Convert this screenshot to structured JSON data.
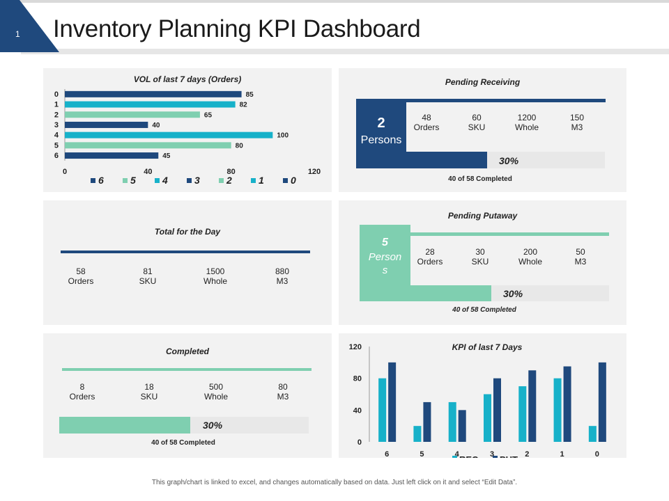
{
  "slide": {
    "number": "1",
    "title": "Inventory Planning KPI Dashboard"
  },
  "colors": {
    "navy": "#1f497d",
    "teal": "#17b1c9",
    "mint": "#7fcfb0"
  },
  "vol_chart": {
    "title": "VOL  of last 7 days (Orders)",
    "categories": [
      "0",
      "1",
      "2",
      "3",
      "4",
      "5",
      "6"
    ],
    "values": [
      85,
      82,
      65,
      40,
      100,
      80,
      45
    ],
    "x_ticks": [
      "0",
      "40",
      "80",
      "120"
    ],
    "legend": [
      "6",
      "5",
      "4",
      "3",
      "2",
      "1",
      "0"
    ]
  },
  "pending_receiving": {
    "title": "Pending  Receiving",
    "persons_value": "2",
    "persons_label": "Persons",
    "stats": [
      {
        "value": "48",
        "unit": "Orders"
      },
      {
        "value": "60",
        "unit": "SKU"
      },
      {
        "value": "1200",
        "unit": "Whole"
      },
      {
        "value": "150",
        "unit": "M3"
      }
    ],
    "pct_label": "30%",
    "completed_label": "40 of 58 Completed"
  },
  "total_day": {
    "title": "Total for the Day",
    "stats": [
      {
        "value": "58",
        "unit": "Orders"
      },
      {
        "value": "81",
        "unit": "SKU"
      },
      {
        "value": "1500",
        "unit": "Whole"
      },
      {
        "value": "880",
        "unit": "M3"
      }
    ]
  },
  "pending_putaway": {
    "title": "Pending  Putaway",
    "persons_value": "5",
    "persons_label_1": "Person",
    "persons_label_2": "s",
    "stats": [
      {
        "value": "28",
        "unit": "Orders"
      },
      {
        "value": "30",
        "unit": "SKU"
      },
      {
        "value": "200",
        "unit": "Whole"
      },
      {
        "value": "50",
        "unit": "M3"
      }
    ],
    "pct_label": "30%",
    "completed_label": "40 of 58 Completed"
  },
  "completed": {
    "title": "Completed",
    "stats": [
      {
        "value": "8",
        "unit": "Orders"
      },
      {
        "value": "18",
        "unit": "SKU"
      },
      {
        "value": "500",
        "unit": "Whole"
      },
      {
        "value": "80",
        "unit": "M3"
      }
    ],
    "pct_label": "30%",
    "completed_label": "40 of 58 Completed"
  },
  "chart_data": [
    {
      "type": "bar",
      "orientation": "horizontal",
      "title": "VOL  of last 7 days (Orders)",
      "categories": [
        "0",
        "1",
        "2",
        "3",
        "4",
        "5",
        "6"
      ],
      "values": [
        85,
        82,
        65,
        40,
        100,
        80,
        45
      ],
      "xlim": [
        0,
        120
      ],
      "grid": false,
      "legend_position": "bottom"
    },
    {
      "type": "bar",
      "orientation": "vertical",
      "title": "KPI  of last 7 Days",
      "categories": [
        "6",
        "5",
        "4",
        "3",
        "2",
        "1",
        "0"
      ],
      "series": [
        {
          "name": "REC",
          "values": [
            80,
            20,
            50,
            60,
            70,
            80,
            20
          ]
        },
        {
          "name": "PUT",
          "values": [
            100,
            50,
            40,
            80,
            90,
            95,
            100
          ]
        }
      ],
      "y_ticks": [
        "0",
        "40",
        "80",
        "120"
      ],
      "ylim": [
        0,
        120
      ],
      "grid": false,
      "legend_position": "bottom"
    }
  ],
  "footer": "This graph/chart is linked to excel, and changes automatically based on data. Just left click on it and select “Edit Data”."
}
